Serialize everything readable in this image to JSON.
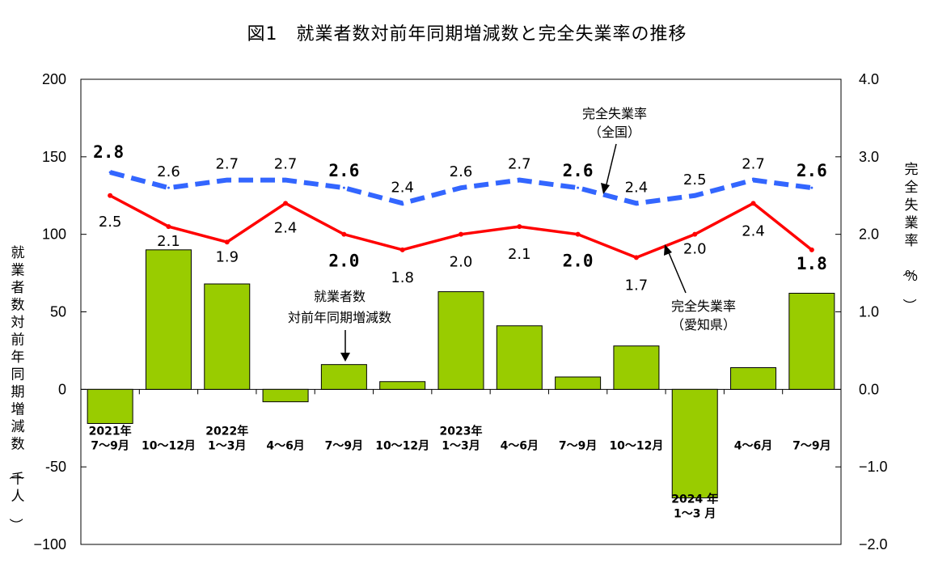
{
  "title": "図1　就業者数対前年同期増減数と完全失業率の推移",
  "chart_data": {
    "type": "bar+line",
    "categories": [
      [
        "2021年",
        "7〜9月"
      ],
      [
        "",
        "10〜12月"
      ],
      [
        "2022年",
        "1〜3月"
      ],
      [
        "",
        "4〜6月"
      ],
      [
        "",
        "7〜9月"
      ],
      [
        "",
        "10〜12月"
      ],
      [
        "2023年",
        "1〜3月"
      ],
      [
        "",
        "4〜6月"
      ],
      [
        "",
        "7〜9月"
      ],
      [
        "",
        "10〜12月"
      ],
      [
        "2024 年",
        "1〜3 月"
      ],
      [
        "",
        "4〜6月"
      ],
      [
        "",
        "7〜9月"
      ]
    ],
    "bar_series": {
      "name": "就業者数対前年同期増減数",
      "axis": "left",
      "values": [
        -22,
        90,
        68,
        -8,
        16,
        5,
        63,
        41,
        8,
        28,
        -70,
        14,
        62
      ],
      "color": "#99cc00"
    },
    "line_series": [
      {
        "name": "完全失業率（全国）",
        "axis": "right",
        "values": [
          2.8,
          2.6,
          2.7,
          2.7,
          2.6,
          2.4,
          2.6,
          2.7,
          2.6,
          2.4,
          2.5,
          2.7,
          2.6
        ],
        "labels": [
          "2.8",
          "2.6",
          "2.7",
          "2.7",
          "2.6",
          "2.4",
          "2.6",
          "2.7",
          "2.6",
          "2.4",
          "2.5",
          "2.7",
          "2.6"
        ],
        "color": "#3366ff",
        "style": "dashed"
      },
      {
        "name": "完全失業率（愛知県）",
        "axis": "right",
        "values": [
          2.5,
          2.1,
          1.9,
          2.4,
          2.0,
          1.8,
          2.0,
          2.1,
          2.0,
          1.7,
          2.0,
          2.4,
          1.8
        ],
        "labels": [
          "2.5",
          "2.1",
          "1.9",
          "2.4",
          "2.0",
          "1.8",
          "2.0",
          "2.1",
          "2.0",
          "1.7",
          "2.0",
          "2.4",
          "1.8"
        ],
        "color": "#ff0000",
        "style": "solid"
      }
    ],
    "left_axis": {
      "label": "就業者数対前年同期増減数（千人）",
      "ylim": [
        -100,
        200
      ],
      "ticks": [
        "200",
        "150",
        "100",
        "50",
        "0",
        "-50",
        "−100"
      ],
      "tick_values": [
        200,
        150,
        100,
        50,
        0,
        -50,
        -100
      ]
    },
    "right_axis": {
      "label": "完全失業率（％）",
      "ylim": [
        -2.0,
        4.0
      ],
      "ticks": [
        "4.0",
        "3.0",
        "2.0",
        "1.0",
        "0.0",
        "−1.0",
        "−2.0"
      ],
      "tick_values": [
        4.0,
        3.0,
        2.0,
        1.0,
        0.0,
        -1.0,
        -2.0
      ]
    },
    "annotations": {
      "national": [
        "完全失業率",
        "（全国）"
      ],
      "aichi": [
        "完全失業率",
        "（愛知県）"
      ],
      "employment": [
        "就業者数",
        "対前年同期増減数"
      ]
    }
  }
}
